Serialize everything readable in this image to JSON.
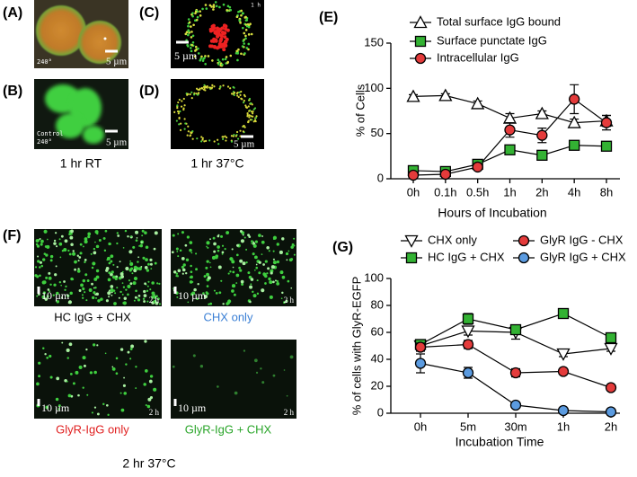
{
  "panels_top": [
    {
      "label": "(A)",
      "tags": [
        "240°"
      ],
      "scale": "5 µm"
    },
    {
      "label": "(B)",
      "tags": [
        "Control",
        "240°"
      ],
      "scale": "5 µm"
    },
    {
      "label": "(C)",
      "tags": [
        "1 h"
      ],
      "scale": "5 µm"
    },
    {
      "label": "(D)",
      "tags": [],
      "scale": "5 µm"
    }
  ],
  "captions_top": [
    "1 hr RT",
    "1 hr 37°C"
  ],
  "panel_f": {
    "label": "(F)",
    "caption": "2 hr 37°C",
    "images": [
      {
        "caption": "HC IgG + CHX",
        "color": "#000000",
        "scale": "10 µm",
        "time": "2 h"
      },
      {
        "caption": "CHX only",
        "color": "#3a7fd5",
        "scale": "10 µm",
        "time": "2 h"
      },
      {
        "caption": "GlyR-IgG only",
        "color": "#e02020",
        "scale": "10 µm",
        "time": "2 h"
      },
      {
        "caption": "GlyR-IgG + CHX",
        "color": "#2aa52a",
        "scale": "10 µm",
        "time": "2 h"
      }
    ]
  },
  "chart_data": [
    {
      "type": "line",
      "label": "(E)",
      "x_label": "Hours of Incubation",
      "y_label": "% of Cells",
      "categories": [
        "0h",
        "0.1h",
        "0.5h",
        "1h",
        "2h",
        "4h",
        "8h"
      ],
      "ylim": [
        0,
        150
      ],
      "yticks": [
        0,
        50,
        100,
        150
      ],
      "series": [
        {
          "name": "Total surface IgG bound",
          "color": "#ffffff",
          "marker": "triangle-up",
          "values": [
            91,
            92,
            83,
            67,
            72,
            62,
            64
          ],
          "errors": [
            2,
            2,
            3,
            5,
            3,
            4,
            6
          ]
        },
        {
          "name": "Surface punctate IgG",
          "color": "#33b233",
          "marker": "square",
          "values": [
            9,
            8,
            16,
            32,
            26,
            37,
            36
          ],
          "errors": [
            1,
            1,
            2,
            3,
            2,
            2,
            2
          ]
        },
        {
          "name": "Intracellular IgG",
          "color": "#e43b3b",
          "marker": "circle",
          "values": [
            4,
            5,
            13,
            54,
            48,
            88,
            62
          ],
          "errors": [
            1,
            1,
            2,
            8,
            8,
            16,
            8
          ]
        }
      ]
    },
    {
      "type": "line",
      "label": "(G)",
      "x_label": "Incubation Time",
      "y_label": "% of cells with GlyR-EGFP",
      "categories": [
        "0h",
        "5m",
        "30m",
        "1h",
        "2h"
      ],
      "ylim": [
        0,
        100
      ],
      "yticks": [
        0,
        20,
        40,
        60,
        80,
        100
      ],
      "series": [
        {
          "name": "CHX only",
          "color": "#ffffff",
          "marker": "triangle-down",
          "values": [
            50,
            61,
            60,
            44,
            48
          ],
          "errors": [
            3,
            3,
            5,
            2,
            2
          ]
        },
        {
          "name": "HC IgG + CHX",
          "color": "#33b233",
          "marker": "square",
          "values": [
            51,
            70,
            62,
            74,
            56
          ],
          "errors": [
            3,
            4,
            3,
            2,
            3
          ]
        },
        {
          "name": "GlyR IgG - CHX",
          "color": "#e43b3b",
          "marker": "circle",
          "values": [
            49,
            51,
            30,
            31,
            19
          ],
          "errors": [
            3,
            3,
            3,
            2,
            1
          ]
        },
        {
          "name": "GlyR IgG + CHX",
          "color": "#5b9be0",
          "marker": "circle",
          "values": [
            37,
            30,
            6,
            2,
            1
          ],
          "errors": [
            7,
            4,
            1,
            1,
            1
          ]
        }
      ]
    }
  ]
}
